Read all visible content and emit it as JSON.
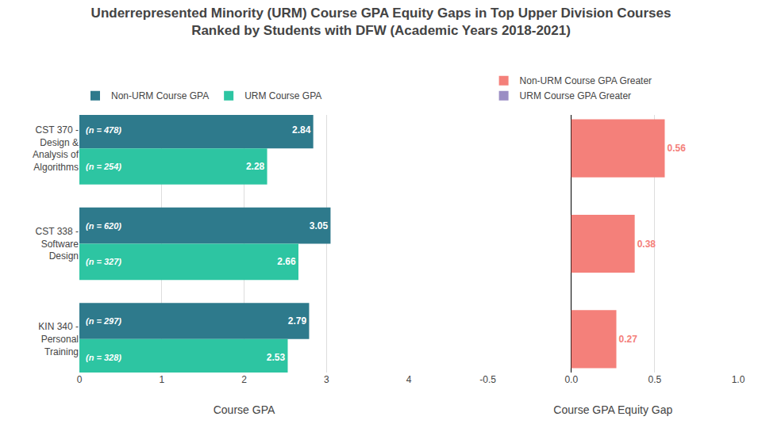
{
  "chart_data": [
    {
      "type": "bar",
      "orientation": "horizontal",
      "title": "Underrepresented Minority (URM) Course GPA Equity Gaps in Top Upper Division Courses\nRanked by Students with DFW (Academic Years 2018-2021)",
      "categories": [
        "CST 370 -\nDesign &\nAnalysis of\nAlgorithms",
        "CST 338 -\nSoftware\nDesign",
        "KIN 340 -\nPersonal\nTraining"
      ],
      "series": [
        {
          "name": "Non-URM Course GPA",
          "color": "#2E7A8C",
          "values": [
            2.84,
            3.05,
            2.79
          ],
          "n_labels": [
            "(n = 478)",
            "(n = 620)",
            "(n = 297)"
          ]
        },
        {
          "name": "URM Course GPA",
          "color": "#2DC5A2",
          "values": [
            2.28,
            2.66,
            2.53
          ],
          "n_labels": [
            "(n = 254)",
            "(n = 327)",
            "(n = 328)"
          ]
        }
      ],
      "xlabel": "Course GPA",
      "xlim": [
        0,
        4
      ],
      "xticks": [
        0,
        1,
        2,
        3,
        4
      ],
      "grid": true,
      "legend": "top left",
      "data_labels": true
    },
    {
      "type": "bar",
      "orientation": "horizontal",
      "categories": [
        "CST 370 -\nDesign &\nAnalysis of\nAlgorithms",
        "CST 338 -\nSoftware\nDesign",
        "KIN 340 -\nPersonal\nTraining"
      ],
      "series": [
        {
          "name": "Non-URM Course GPA Greater",
          "color": "#F4807A",
          "values": [
            0.56,
            0.38,
            0.27
          ]
        },
        {
          "name": "URM Course GPA Greater",
          "color": "#9B8EC4",
          "values": [
            null,
            null,
            null
          ]
        }
      ],
      "xlabel": "Course GPA Equity Gap",
      "xlim": [
        -0.5,
        1.0
      ],
      "xticks": [
        -0.5,
        {
          "value": 0,
          "label": "0.0"
        },
        0.5,
        {
          "value": 1,
          "label": "1.0"
        }
      ],
      "grid": true,
      "legend": "top left",
      "data_labels": true,
      "tick_labels": "x"
    }
  ]
}
